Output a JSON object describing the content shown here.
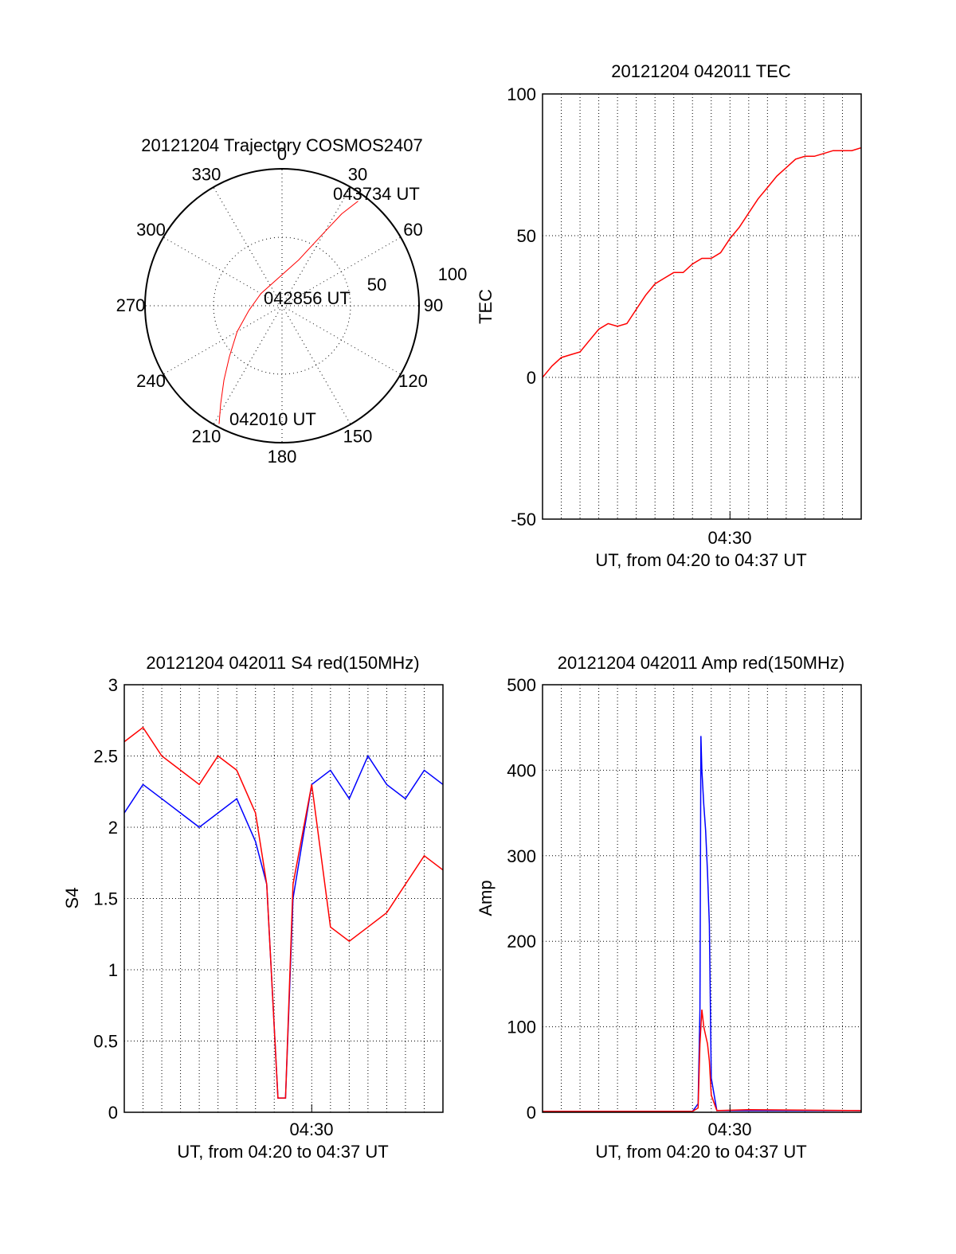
{
  "colors": {
    "red": "#ff0000",
    "blue": "#0000ff",
    "axis": "#000000",
    "grid": "#000000"
  },
  "chart_data": [
    {
      "id": "trajectory",
      "type": "polar",
      "title": "20121204 Trajectory COSMOS2407",
      "azimuth_labels": [
        "0",
        "30",
        "60",
        "90",
        "120",
        "150",
        "180",
        "210",
        "240",
        "270",
        "300",
        "330"
      ],
      "radial_labels": [
        "50",
        "100"
      ],
      "points": [
        {
          "label": "042010 UT",
          "azimuth": 208,
          "zenith": 88
        },
        {
          "label": "042856 UT",
          "azimuth": 315,
          "zenith": 16
        },
        {
          "label": "043734 UT",
          "azimuth": 36,
          "zenith": 85
        }
      ],
      "track": {
        "color": "red",
        "azimuth": [
          208,
          212,
          218,
          226,
          240,
          262,
          300,
          20,
          30,
          33,
          36
        ],
        "zenith": [
          88,
          76,
          62,
          48,
          34,
          22,
          16,
          32,
          56,
          72,
          85
        ]
      }
    },
    {
      "id": "tec",
      "type": "line",
      "title": "20121204 042011 TEC",
      "ylabel": "TEC",
      "xlabel": "UT, from 04:20 to 04:37 UT",
      "xtick": "04:30",
      "ylim": [
        -50,
        100
      ],
      "yticks": [
        "-50",
        "0",
        "50",
        "100"
      ],
      "grid": true,
      "series": [
        {
          "color": "red",
          "x": [
            0,
            0.5,
            1,
            1.5,
            2,
            2.5,
            3,
            3.5,
            4,
            4.5,
            5,
            5.5,
            6,
            6.5,
            7,
            7.5,
            8,
            8.5,
            9,
            9.5,
            10,
            10.5,
            11,
            11.5,
            12,
            12.5,
            13,
            13.5,
            14,
            14.5,
            15,
            15.5,
            16,
            16.5,
            17
          ],
          "y": [
            0,
            4,
            7,
            8,
            9,
            13,
            17,
            19,
            18,
            19,
            24,
            29,
            33,
            35,
            37,
            37,
            40,
            42,
            42,
            44,
            49,
            53,
            58,
            63,
            67,
            71,
            74,
            77,
            78,
            78,
            79,
            80,
            80,
            80,
            81
          ]
        }
      ]
    },
    {
      "id": "s4",
      "type": "line",
      "title": "20121204 042011 S4 red(150MHz)",
      "ylabel": "S4",
      "xlabel": "UT, from 04:20 to 04:37 UT",
      "xtick": "04:30",
      "ylim": [
        0,
        3
      ],
      "yticks": [
        "0",
        "0.5",
        "1",
        "1.5",
        "2",
        "2.5",
        "3"
      ],
      "grid": true,
      "series": [
        {
          "color": "blue",
          "x": [
            0,
            1,
            2,
            3,
            4,
            5,
            6,
            7,
            7.6,
            8.2,
            8.4,
            8.6,
            9,
            10,
            11,
            12,
            13,
            14,
            15,
            16,
            17
          ],
          "y": [
            2.1,
            2.3,
            2.2,
            2.1,
            2.0,
            2.1,
            2.2,
            1.9,
            1.6,
            0.1,
            0.1,
            0.1,
            1.5,
            2.3,
            2.4,
            2.2,
            2.5,
            2.3,
            2.2,
            2.4,
            2.3
          ]
        },
        {
          "color": "red",
          "x": [
            0,
            1,
            2,
            3,
            4,
            5,
            6,
            7,
            7.6,
            8.2,
            8.4,
            8.6,
            9,
            10,
            11,
            12,
            13,
            14,
            15,
            16,
            17
          ],
          "y": [
            2.6,
            2.7,
            2.5,
            2.4,
            2.3,
            2.5,
            2.4,
            2.1,
            1.6,
            0.1,
            0.1,
            0.1,
            1.6,
            2.3,
            1.3,
            1.2,
            1.3,
            1.4,
            1.6,
            1.8,
            1.7
          ]
        }
      ]
    },
    {
      "id": "amp",
      "type": "line",
      "title": "20121204 042011 Amp red(150MHz)",
      "ylabel": "Amp",
      "xlabel": "UT, from 04:20 to 04:37 UT",
      "xtick": "04:30",
      "ylim": [
        0,
        500
      ],
      "yticks": [
        "0",
        "100",
        "200",
        "300",
        "400",
        "500"
      ],
      "grid": true,
      "series": [
        {
          "color": "blue",
          "x": [
            0,
            8,
            8.3,
            8.4,
            8.45,
            8.5,
            8.6,
            8.7,
            8.8,
            8.9,
            9.0,
            9.3,
            17
          ],
          "y": [
            1,
            1,
            10,
            120,
            440,
            400,
            360,
            330,
            280,
            220,
            40,
            2,
            2
          ]
        },
        {
          "color": "red",
          "x": [
            0,
            8,
            8.3,
            8.4,
            8.5,
            8.6,
            8.7,
            8.8,
            8.9,
            9.0,
            9.3,
            11,
            17
          ],
          "y": [
            1,
            1,
            5,
            80,
            120,
            100,
            90,
            80,
            60,
            20,
            2,
            3,
            2
          ]
        }
      ]
    }
  ]
}
